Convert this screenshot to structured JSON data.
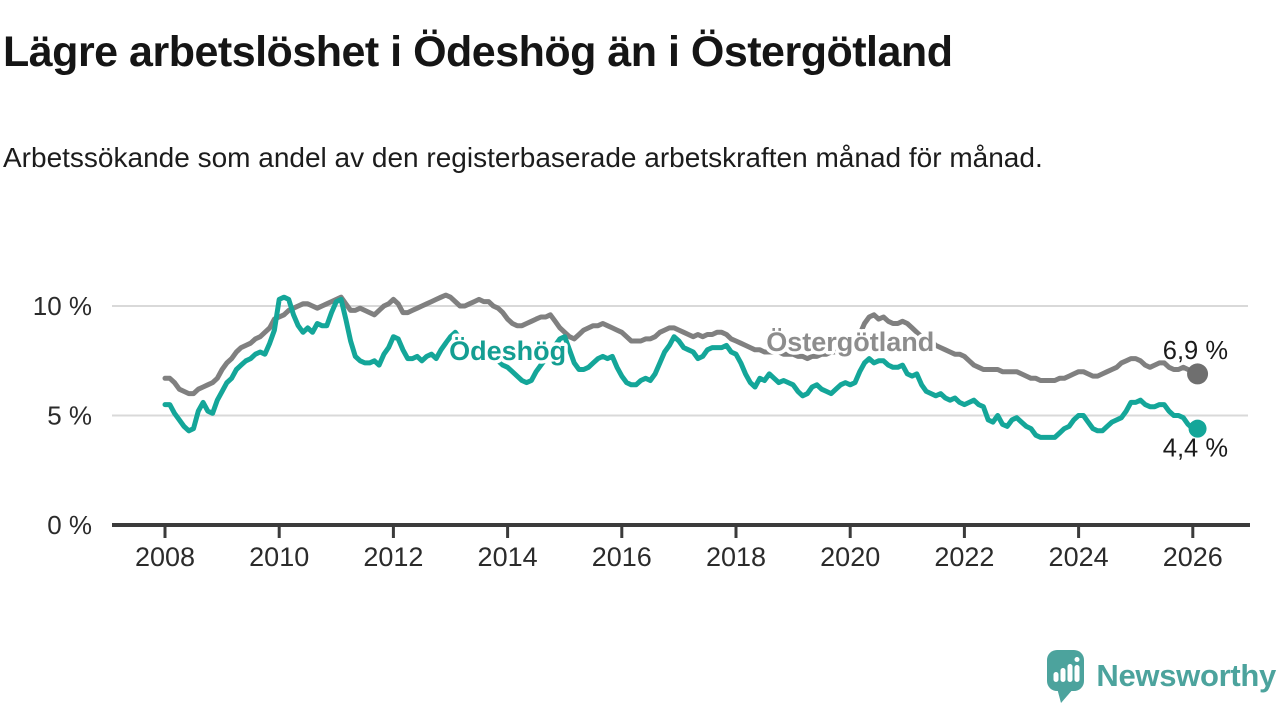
{
  "header": {
    "title": "Lägre arbetslöshet i Ödeshög än i Östergötland",
    "subtitle": "Arbetssökande som andel av den registerbaserade arbetskraften månad för månad."
  },
  "chart_data": {
    "type": "line",
    "title": "Lägre arbetslöshet i Ödeshög än i Östergötland",
    "xlabel": "",
    "ylabel": "Arbetssökande som andel av den registerbaserade arbetskraften",
    "unit": "%",
    "x_start_year": 2008,
    "x_step_years": 0.0833333,
    "x_ticks": [
      2008,
      2010,
      2012,
      2014,
      2016,
      2018,
      2020,
      2022,
      2024,
      2026
    ],
    "y_ticks": [
      {
        "value": 0,
        "label": "0 %"
      },
      {
        "value": 5,
        "label": "5 %"
      },
      {
        "value": 10,
        "label": "10 %"
      }
    ],
    "ylim": [
      0,
      11.4
    ],
    "grid": "horizontal",
    "legend_position": "inline-labels",
    "series": [
      {
        "name": "Östergötland",
        "color": "#808080",
        "label_color": "#8d8d8d",
        "dot_color": "#6f6f6f",
        "end_label": "6,9 %",
        "end_value": 6.9,
        "label_anchor_year": 2020.0,
        "label_anchor_value": 8.35,
        "values": [
          6.7,
          6.7,
          6.5,
          6.2,
          6.1,
          6.0,
          6.0,
          6.2,
          6.3,
          6.4,
          6.5,
          6.7,
          7.1,
          7.4,
          7.6,
          7.9,
          8.1,
          8.2,
          8.3,
          8.5,
          8.6,
          8.8,
          9.0,
          9.4,
          9.5,
          9.6,
          9.8,
          9.9,
          10.0,
          10.1,
          10.1,
          10.0,
          9.9,
          10.0,
          10.1,
          10.2,
          10.3,
          10.4,
          10.1,
          9.8,
          9.8,
          9.9,
          9.8,
          9.7,
          9.6,
          9.8,
          10.0,
          10.1,
          10.3,
          10.1,
          9.7,
          9.7,
          9.8,
          9.9,
          10.0,
          10.1,
          10.2,
          10.3,
          10.4,
          10.5,
          10.4,
          10.2,
          10.0,
          10.0,
          10.1,
          10.2,
          10.3,
          10.2,
          10.2,
          10.0,
          9.9,
          9.7,
          9.4,
          9.2,
          9.1,
          9.1,
          9.2,
          9.3,
          9.4,
          9.5,
          9.5,
          9.6,
          9.3,
          9.0,
          8.8,
          8.6,
          8.5,
          8.7,
          8.9,
          9.0,
          9.1,
          9.1,
          9.2,
          9.1,
          9.0,
          8.9,
          8.8,
          8.6,
          8.4,
          8.4,
          8.4,
          8.5,
          8.5,
          8.6,
          8.8,
          8.9,
          9.0,
          9.0,
          8.9,
          8.8,
          8.7,
          8.6,
          8.7,
          8.6,
          8.7,
          8.7,
          8.8,
          8.8,
          8.7,
          8.5,
          8.4,
          8.3,
          8.2,
          8.1,
          8.0,
          8.0,
          7.9,
          7.9,
          7.9,
          7.9,
          7.8,
          7.8,
          7.8,
          7.7,
          7.7,
          7.6,
          7.7,
          7.7,
          7.8,
          7.8,
          7.9,
          7.9,
          8.0,
          8.0,
          8.0,
          8.2,
          8.7,
          9.2,
          9.5,
          9.6,
          9.4,
          9.5,
          9.3,
          9.2,
          9.2,
          9.3,
          9.2,
          9.0,
          8.8,
          8.6,
          8.5,
          8.4,
          8.2,
          8.1,
          8.0,
          7.9,
          7.8,
          7.8,
          7.7,
          7.5,
          7.3,
          7.2,
          7.1,
          7.1,
          7.1,
          7.1,
          7.0,
          7.0,
          7.0,
          7.0,
          6.9,
          6.8,
          6.7,
          6.7,
          6.6,
          6.6,
          6.6,
          6.6,
          6.7,
          6.7,
          6.8,
          6.9,
          7.0,
          7.0,
          6.9,
          6.8,
          6.8,
          6.9,
          7.0,
          7.1,
          7.2,
          7.4,
          7.5,
          7.6,
          7.6,
          7.5,
          7.3,
          7.2,
          7.3,
          7.4,
          7.4,
          7.2,
          7.1,
          7.1,
          7.2,
          7.1,
          7.0,
          6.9
        ]
      },
      {
        "name": "Ödeshög",
        "color": "#14a699",
        "label_color": "#149e92",
        "dot_color": "#14a699",
        "end_label": "4,4 %",
        "end_value": 4.4,
        "label_anchor_year": 2014.0,
        "label_anchor_value": 7.95,
        "values": [
          5.5,
          5.5,
          5.1,
          4.8,
          4.5,
          4.3,
          4.4,
          5.2,
          5.6,
          5.2,
          5.1,
          5.7,
          6.1,
          6.5,
          6.7,
          7.1,
          7.3,
          7.5,
          7.6,
          7.8,
          7.9,
          7.8,
          8.3,
          8.9,
          10.3,
          10.4,
          10.3,
          9.6,
          9.1,
          8.8,
          9.0,
          8.8,
          9.2,
          9.1,
          9.1,
          9.7,
          10.2,
          10.3,
          9.4,
          8.4,
          7.7,
          7.5,
          7.4,
          7.4,
          7.5,
          7.3,
          7.8,
          8.1,
          8.6,
          8.5,
          8.0,
          7.6,
          7.6,
          7.7,
          7.5,
          7.7,
          7.8,
          7.6,
          8.0,
          8.3,
          8.6,
          8.8,
          8.5,
          8.2,
          8.0,
          7.8,
          7.6,
          7.7,
          7.8,
          7.7,
          7.5,
          7.3,
          7.2,
          7.0,
          6.8,
          6.6,
          6.5,
          6.6,
          7.0,
          7.3,
          7.6,
          7.9,
          8.2,
          8.5,
          8.6,
          8.0,
          7.4,
          7.1,
          7.1,
          7.2,
          7.4,
          7.6,
          7.7,
          7.6,
          7.7,
          7.2,
          6.8,
          6.5,
          6.4,
          6.4,
          6.6,
          6.7,
          6.6,
          6.9,
          7.4,
          7.9,
          8.2,
          8.6,
          8.4,
          8.1,
          8.0,
          7.9,
          7.6,
          7.7,
          8.0,
          8.1,
          8.1,
          8.1,
          8.2,
          7.9,
          7.8,
          7.4,
          6.9,
          6.5,
          6.3,
          6.7,
          6.6,
          6.9,
          6.7,
          6.5,
          6.6,
          6.5,
          6.4,
          6.1,
          5.9,
          6.0,
          6.3,
          6.4,
          6.2,
          6.1,
          6.0,
          6.2,
          6.4,
          6.5,
          6.4,
          6.5,
          7.0,
          7.4,
          7.6,
          7.4,
          7.5,
          7.5,
          7.3,
          7.2,
          7.2,
          7.3,
          6.9,
          6.8,
          6.9,
          6.4,
          6.1,
          6.0,
          5.9,
          6.0,
          5.8,
          5.7,
          5.8,
          5.6,
          5.5,
          5.6,
          5.7,
          5.5,
          5.4,
          4.8,
          4.7,
          5.0,
          4.6,
          4.5,
          4.8,
          4.9,
          4.7,
          4.5,
          4.4,
          4.1,
          4.0,
          4.0,
          4.0,
          4.0,
          4.2,
          4.4,
          4.5,
          4.8,
          5.0,
          5.0,
          4.7,
          4.4,
          4.3,
          4.3,
          4.5,
          4.7,
          4.8,
          4.9,
          5.2,
          5.6,
          5.6,
          5.7,
          5.5,
          5.4,
          5.4,
          5.5,
          5.5,
          5.2,
          5.0,
          5.0,
          4.9,
          4.6,
          4.4,
          4.4
        ]
      }
    ]
  },
  "branding": {
    "logo_text": "Newsworthy",
    "logo_color": "#4CA39D"
  }
}
